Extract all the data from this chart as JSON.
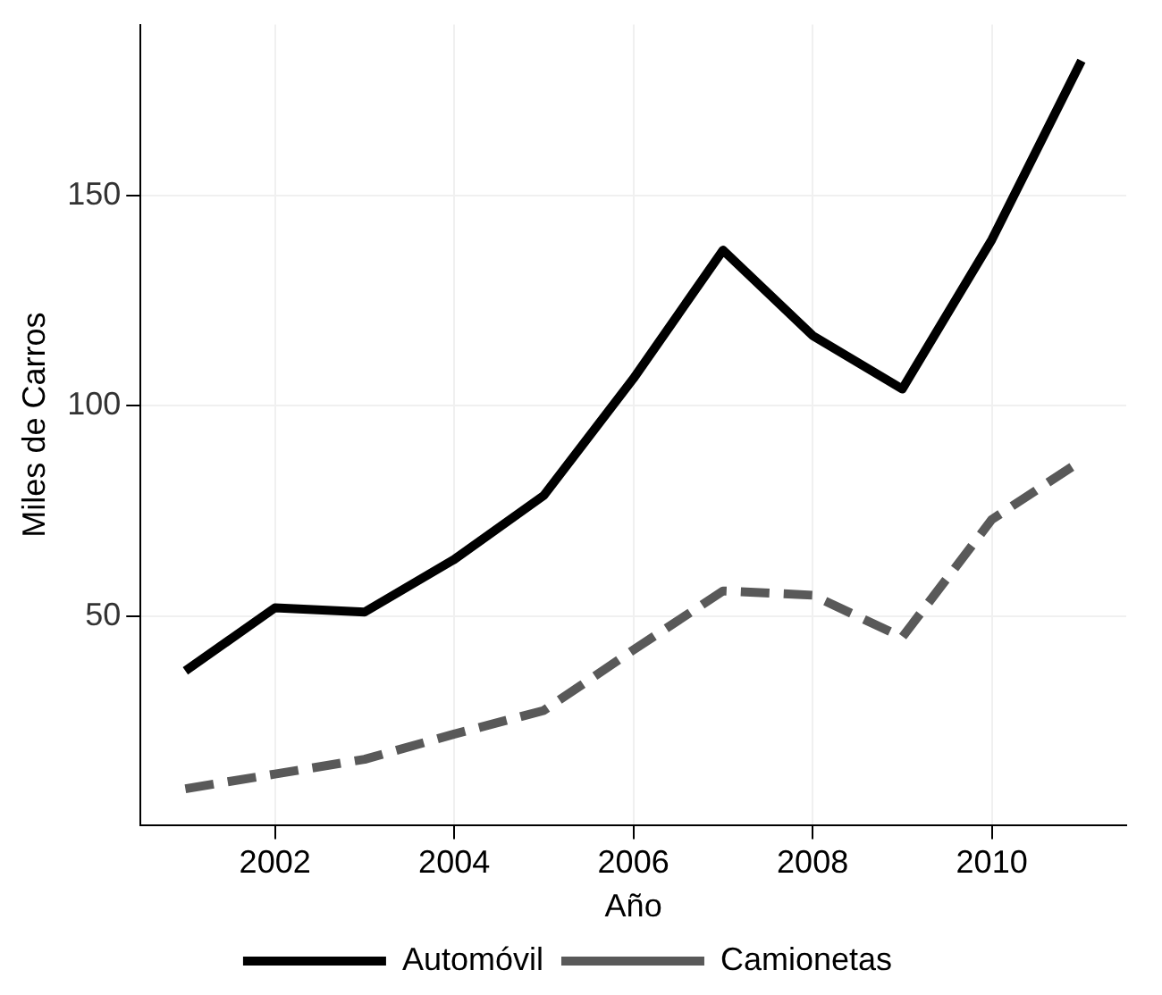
{
  "chart_data": {
    "type": "line",
    "xlabel": "Año",
    "ylabel": "Miles de Carros",
    "x": [
      2001,
      2002,
      2003,
      2004,
      2005,
      2006,
      2007,
      2008,
      2009,
      2010,
      2011
    ],
    "series": [
      {
        "name": "Automóvil",
        "color": "#000000",
        "line_style": "solid",
        "values": [
          37,
          52,
          51,
          63.5,
          78.7,
          106.5,
          137,
          116.7,
          104,
          139.5,
          182
        ]
      },
      {
        "name": "Camionetas",
        "color": "#595959",
        "line_style": "dashed",
        "values": [
          9,
          12.5,
          16,
          22,
          27.6,
          42,
          56,
          55,
          45,
          73,
          87
        ]
      }
    ],
    "xlim": [
      2000.5,
      2011.5
    ],
    "xticks": [
      2002,
      2004,
      2006,
      2008,
      2010
    ],
    "ylim": [
      0.4,
      190.6
    ],
    "yticks": [
      50,
      100,
      150
    ],
    "grid": true,
    "legend": "bottom",
    "marker": "none"
  }
}
